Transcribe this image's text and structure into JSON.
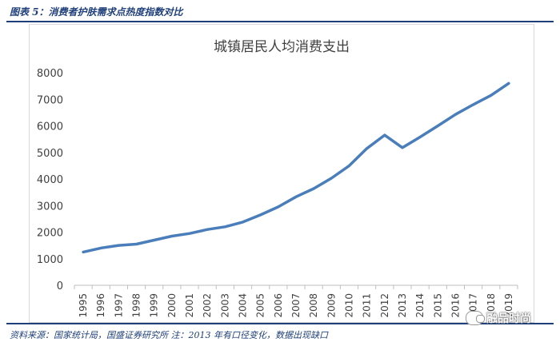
{
  "figure": {
    "title": "图表 5：消费者护肤需求点热度指数对比",
    "source": "资料来源：国家统计局，国盛证券研究所    注：2013 年有口径变化，数据出现缺口",
    "watermark": "融品时尚",
    "watermark_icon": "wechat-icon"
  },
  "colors": {
    "line": "#4a7ebb",
    "header_rule": "#1f3f7a",
    "axis": "#bfbfbf",
    "text": "#404040"
  },
  "chart_data": {
    "type": "line",
    "title": "城镇居民人均消费支出",
    "xlabel": "",
    "ylabel": "",
    "ylim": [
      0,
      8000
    ],
    "yticks": [
      0,
      1000,
      2000,
      3000,
      4000,
      5000,
      6000,
      7000,
      8000
    ],
    "grid": false,
    "legend": "none",
    "x": [
      "1995",
      "1996",
      "1997",
      "1998",
      "1999",
      "2000",
      "2001",
      "2002",
      "2003",
      "2004",
      "2005",
      "2006",
      "2007",
      "2008",
      "2009",
      "2010",
      "2011",
      "2012",
      "2013",
      "2014",
      "2015",
      "2016",
      "2017",
      "2018",
      "2019"
    ],
    "series": [
      {
        "values": [
          1250,
          1400,
          1500,
          1550,
          1700,
          1850,
          1950,
          2100,
          2200,
          2380,
          2650,
          2950,
          3330,
          3640,
          4030,
          4500,
          5150,
          5650,
          5180,
          5580,
          6000,
          6430,
          6800,
          7150,
          7600
        ]
      }
    ]
  }
}
